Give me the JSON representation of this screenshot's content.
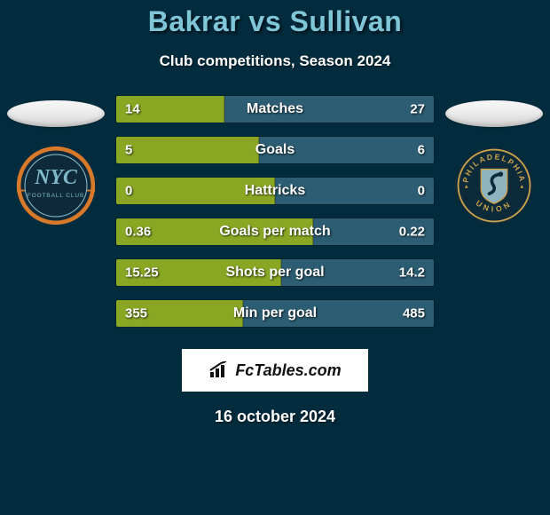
{
  "background_color": "#002c3e",
  "title": {
    "text": "Bakrar vs Sullivan",
    "color": "#7fc6d8",
    "fontsize": 32
  },
  "subtitle": {
    "text": "Club competitions, Season 2024",
    "color": "#ffffff",
    "fontsize": 17
  },
  "metrics": {
    "type": "split-bar",
    "left_bar_color": "#8aa724",
    "right_bar_color": "#2c5d73",
    "label_color": "#ffffff",
    "label_fontsize": 16,
    "value_color": "#ffffff",
    "value_fontsize": 15,
    "rows": [
      {
        "label": "Matches",
        "left_value": "14",
        "right_value": "27",
        "left_pct": 34,
        "right_pct": 66
      },
      {
        "label": "Goals",
        "left_value": "5",
        "right_value": "6",
        "left_pct": 45,
        "right_pct": 55
      },
      {
        "label": "Hattricks",
        "left_value": "0",
        "right_value": "0",
        "left_pct": 50,
        "right_pct": 50
      },
      {
        "label": "Goals per match",
        "left_value": "0.36",
        "right_value": "0.22",
        "left_pct": 62,
        "right_pct": 38
      },
      {
        "label": "Shots per goal",
        "left_value": "15.25",
        "right_value": "14.2",
        "left_pct": 52,
        "right_pct": 48
      },
      {
        "label": "Min per goal",
        "left_value": "355",
        "right_value": "485",
        "left_pct": 40,
        "right_pct": 60
      }
    ]
  },
  "brand": {
    "text": "FcTables.com",
    "icon_color": "#111111",
    "background": "#ffffff"
  },
  "date": {
    "text": "16 october 2024",
    "color": "#ffffff",
    "fontsize": 18
  },
  "crests": {
    "left": {
      "ring_color": "#d87a2a",
      "badge_bg": "#0e2a3a",
      "monogram_text": "NYC",
      "subtext": "FOOTBALL CLUB",
      "text_color": "#7fb8c9"
    },
    "right": {
      "ring_color": "#0d2a3a",
      "gold": "#c9a24a",
      "top_text": "PHILADELPHIA",
      "bottom_text": "UNION"
    }
  }
}
